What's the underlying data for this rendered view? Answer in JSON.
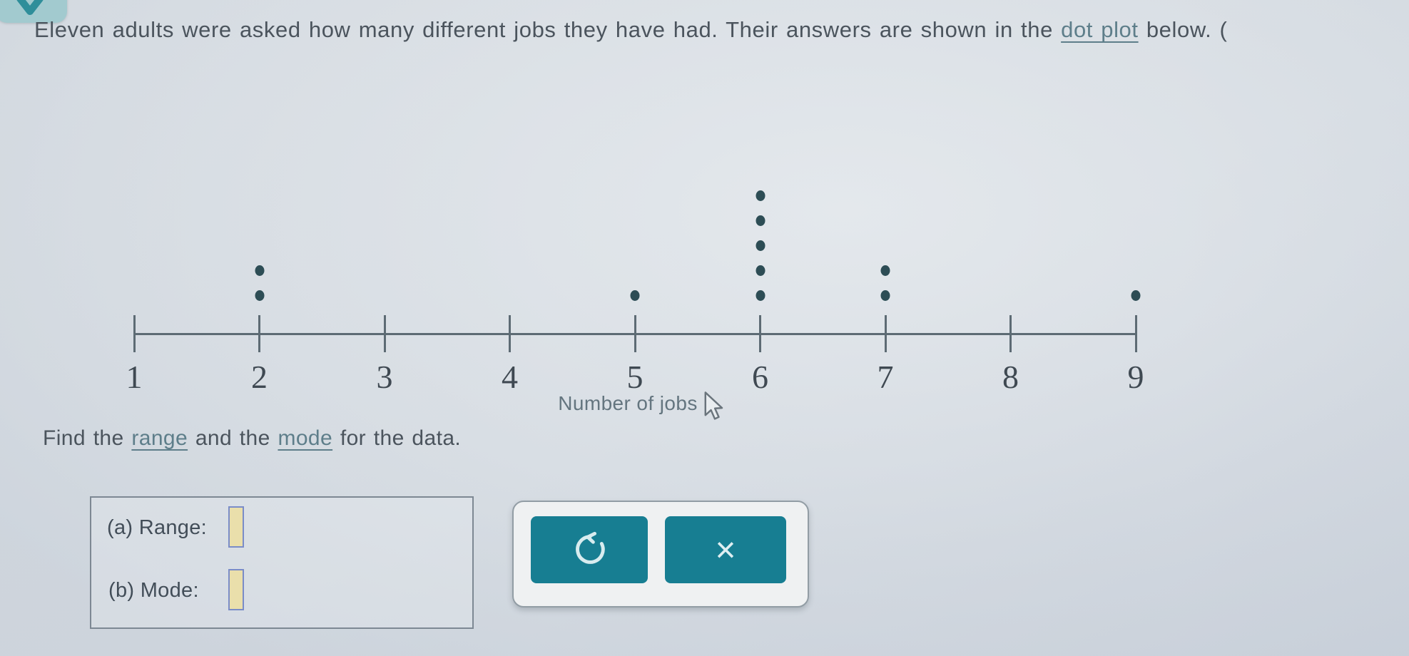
{
  "question": {
    "prefix": "Eleven adults were asked how many different jobs they have had. Their answers are shown in the ",
    "link_text": "dot plot",
    "suffix": " below. ("
  },
  "chart_data": {
    "type": "dot_plot",
    "xlabel": "Number of jobs",
    "x_min": 1,
    "x_max": 9,
    "tick_labels": [
      "1",
      "2",
      "3",
      "4",
      "5",
      "6",
      "7",
      "8",
      "9"
    ],
    "points": [
      {
        "x": 2,
        "count": 2
      },
      {
        "x": 5,
        "count": 1
      },
      {
        "x": 6,
        "count": 5
      },
      {
        "x": 7,
        "count": 2
      },
      {
        "x": 9,
        "count": 1
      }
    ]
  },
  "instruction": {
    "part1": "Find the ",
    "link1": "range",
    "part2": " and the ",
    "link2": "mode",
    "part3": " for the data."
  },
  "answer_panel": {
    "row_a_label": "(a) Range:",
    "row_a_value": "",
    "row_b_label": "(b) Mode:",
    "row_b_value": ""
  },
  "toolbar": {
    "undo_icon": "undo-arrow",
    "close_glyph": "×"
  },
  "top_button": {
    "icon": "chevron-down"
  },
  "cursor": {
    "type": "arrow-pointer"
  },
  "colors": {
    "accent_teal": "#177e92",
    "link": "#5e7e8a",
    "dot": "#2d4d55",
    "axis": "#5d6b74",
    "input_fill": "#eadfab",
    "input_border": "#7a8cc8",
    "panel_bg": "#eff1f2",
    "top_button_bg": "#a2cacf"
  }
}
